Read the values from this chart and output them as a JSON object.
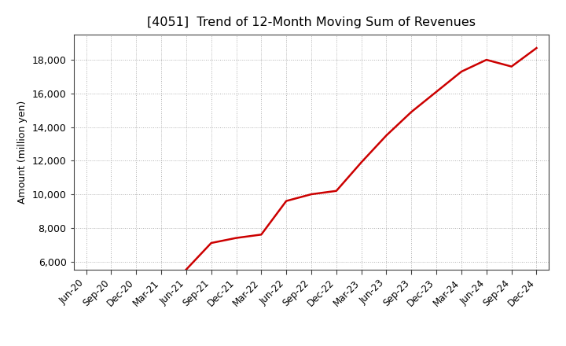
{
  "title": "[4051]  Trend of 12-Month Moving Sum of Revenues",
  "ylabel": "Amount (million yen)",
  "background_color": "#ffffff",
  "plot_bg_color": "#ffffff",
  "grid_color": "#b0b0b0",
  "line_color": "#cc0000",
  "ylim": [
    5500,
    19500
  ],
  "yticks": [
    6000,
    8000,
    10000,
    12000,
    14000,
    16000,
    18000
  ],
  "x_labels": [
    "Jun-20",
    "Sep-20",
    "Dec-20",
    "Mar-21",
    "Jun-21",
    "Sep-21",
    "Dec-21",
    "Mar-22",
    "Jun-22",
    "Sep-22",
    "Dec-22",
    "Mar-23",
    "Jun-23",
    "Sep-23",
    "Dec-23",
    "Mar-24",
    "Jun-24",
    "Sep-24",
    "Dec-24"
  ],
  "data_x_indices": [
    4,
    5,
    6,
    7,
    8,
    9,
    10,
    11,
    12,
    13,
    14,
    15,
    16,
    17,
    18
  ],
  "data_y_values": [
    5520,
    7100,
    7400,
    7600,
    9600,
    10000,
    10200,
    11900,
    13500,
    14900,
    16100,
    17300,
    18000,
    17600,
    18700
  ]
}
